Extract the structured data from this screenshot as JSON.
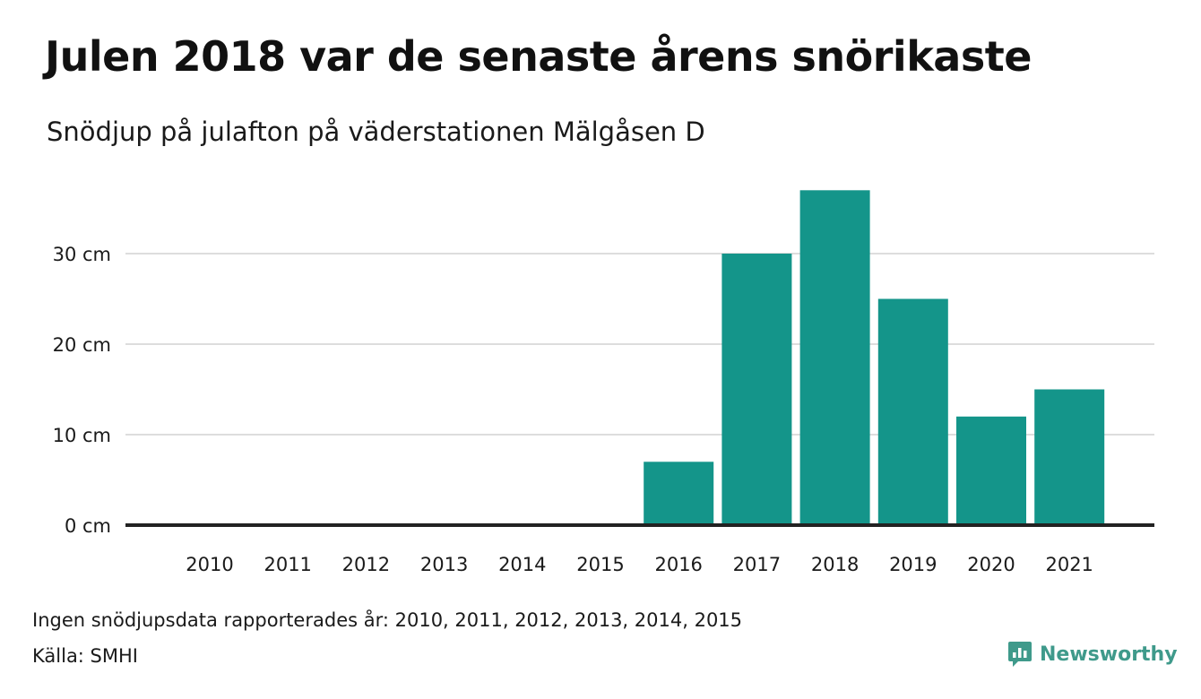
{
  "header": {
    "title": "Julen 2018 var de senaste årens snörikaste",
    "subtitle": "Snödjup på julafton på väderstationen Mälgåsen D"
  },
  "footer": {
    "note": "Ingen snödjupsdata rapporterades år: 2010, 2011, 2012, 2013, 2014, 2015",
    "source": "Källa: SMHI",
    "brand": "Newsworthy"
  },
  "colors": {
    "bar": "#14958a",
    "grid": "#dddddd",
    "axis": "#222222",
    "brand": "#3f9a8b"
  },
  "icons": {
    "brand_logo": "newsworthy-logo-icon"
  },
  "chart_data": {
    "type": "bar",
    "categories": [
      "2010",
      "2011",
      "2012",
      "2013",
      "2014",
      "2015",
      "2016",
      "2017",
      "2018",
      "2019",
      "2020",
      "2021"
    ],
    "values": [
      null,
      null,
      null,
      null,
      null,
      null,
      7,
      30,
      37,
      25,
      12,
      15
    ],
    "ylim": [
      0,
      40
    ],
    "yticks": [
      0,
      10,
      20,
      30
    ],
    "ytick_labels": [
      "0 cm",
      "10 cm",
      "20 cm",
      "30 cm"
    ],
    "grid": true,
    "legend": "none"
  }
}
